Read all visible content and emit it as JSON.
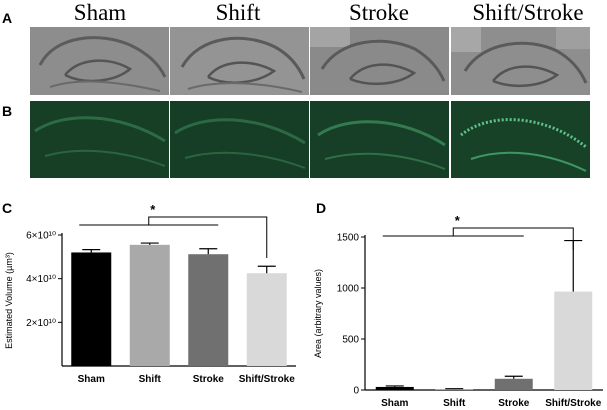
{
  "figure": {
    "panel_labels": {
      "a": "A",
      "b": "B",
      "c": "C",
      "d": "D"
    },
    "groups": [
      "Sham",
      "Shift",
      "Stroke",
      "Shift/Stroke"
    ],
    "significance_marker": "*",
    "panel_a": {
      "description": "brightfield hippocampus sections",
      "colors": {
        "tissue": "#8f8f8f"
      }
    },
    "panel_b": {
      "colors": {
        "background": "#123d22",
        "signal": "#5fc48a"
      }
    }
  },
  "chart_data": [
    {
      "panel": "C",
      "type": "bar",
      "categories": [
        "Sham",
        "Shift",
        "Stroke",
        "Shift/Stroke"
      ],
      "values": [
        52000000000.0,
        55500000000.0,
        51200000000.0,
        42500000000.0
      ],
      "errors": [
        1300000000.0,
        800000000.0,
        2500000000.0,
        3200000000.0
      ],
      "colors": [
        "#000000",
        "#a9a9a9",
        "#707070",
        "#d9d9d9"
      ],
      "ylabel": "Estimated Volume (µm³)",
      "ylim": [
        0,
        60000000000.0
      ],
      "ytick_values": [
        20000000000.0,
        40000000000.0,
        60000000000.0
      ],
      "ytick_labels": [
        "2×10¹⁰",
        "4×10¹⁰",
        "6×10¹⁰"
      ],
      "significance": {
        "from": [
          "Sham",
          "Stroke"
        ],
        "to": "Shift/Stroke",
        "marker": "*"
      }
    },
    {
      "panel": "D",
      "type": "bar",
      "categories": [
        "Sham",
        "Shift",
        "Stroke",
        "Shift/Stroke"
      ],
      "values": [
        30,
        8,
        110,
        965
      ],
      "errors": [
        10,
        5,
        25,
        500
      ],
      "colors": [
        "#000000",
        "#a9a9a9",
        "#707070",
        "#d9d9d9"
      ],
      "ylabel": "Area (arbitrary values)",
      "ylim": [
        0,
        1500
      ],
      "ytick_values": [
        0,
        500,
        1000,
        1500
      ],
      "ytick_labels": [
        "0",
        "500",
        "1000",
        "1500"
      ],
      "significance": {
        "from": [
          "Sham",
          "Stroke"
        ],
        "to": "Shift/Stroke",
        "marker": "*"
      }
    }
  ]
}
